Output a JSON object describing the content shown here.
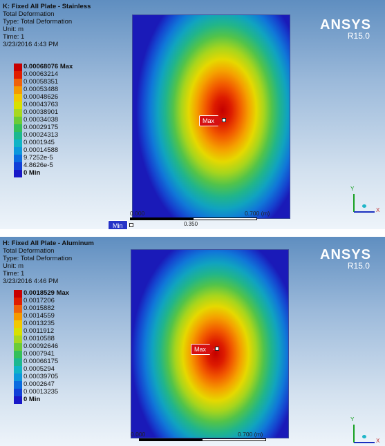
{
  "panels": [
    {
      "title": "K: Fixed All Plate - Stainless",
      "subtitle": "Total Deformation",
      "type": "Type: Total Deformation",
      "unit": "Unit: m",
      "time": "Time: 1",
      "timestamp": "3/23/2016 4:43 PM",
      "legend": [
        {
          "label": "0.00068076 Max",
          "color": "#c80000"
        },
        {
          "label": "0.00063214",
          "color": "#e01e00"
        },
        {
          "label": "0.00058351",
          "color": "#f0620a"
        },
        {
          "label": "0.00053488",
          "color": "#f59a00"
        },
        {
          "label": "0.00048626",
          "color": "#f2c800"
        },
        {
          "label": "0.00043763",
          "color": "#d8e000"
        },
        {
          "label": "0.00038901",
          "color": "#a8d820"
        },
        {
          "label": "0.00034038",
          "color": "#6ccc38"
        },
        {
          "label": "0.00029175",
          "color": "#34c05a"
        },
        {
          "label": "0.00024313",
          "color": "#1cb890"
        },
        {
          "label": "0.0001945",
          "color": "#10b4c6"
        },
        {
          "label": "0.00014588",
          "color": "#0c98dc"
        },
        {
          "label": "9.7252e-5",
          "color": "#0a6ce0"
        },
        {
          "label": "4.8626e-5",
          "color": "#1040d8"
        },
        {
          "label": "0 Min",
          "color": "#1818c8"
        }
      ],
      "probe_max": "Max",
      "probe_min": "Min",
      "scale_left": "0.000",
      "scale_right": "0.700 (m)",
      "scale_mid": "0.350",
      "logo": "ANSYS",
      "version": "R15.0",
      "axis_x": "X",
      "axis_y": "Y"
    },
    {
      "title": "H: Fixed All Plate - Aluminum",
      "subtitle": "Total Deformation",
      "type": "Type: Total Deformation",
      "unit": "Unit: m",
      "time": "Time: 1",
      "timestamp": "3/23/2016 4:46 PM",
      "legend": [
        {
          "label": "0.0018529 Max",
          "color": "#c80000"
        },
        {
          "label": "0.0017206",
          "color": "#e01e00"
        },
        {
          "label": "0.0015882",
          "color": "#f0620a"
        },
        {
          "label": "0.0014559",
          "color": "#f59a00"
        },
        {
          "label": "0.0013235",
          "color": "#f2c800"
        },
        {
          "label": "0.0011912",
          "color": "#d8e000"
        },
        {
          "label": "0.0010588",
          "color": "#a8d820"
        },
        {
          "label": "0.00092646",
          "color": "#6ccc38"
        },
        {
          "label": "0.0007941",
          "color": "#34c05a"
        },
        {
          "label": "0.00066175",
          "color": "#1cb890"
        },
        {
          "label": "0.0005294",
          "color": "#10b4c6"
        },
        {
          "label": "0.00039705",
          "color": "#0c98dc"
        },
        {
          "label": "0.0002647",
          "color": "#0a6ce0"
        },
        {
          "label": "0.00013235",
          "color": "#1040d8"
        },
        {
          "label": "0 Min",
          "color": "#1818c8"
        }
      ],
      "probe_max": "Max",
      "scale_left": "0.000",
      "scale_right": "0.700 (m)",
      "logo": "ANSYS",
      "version": "R15.0",
      "axis_x": "X",
      "axis_y": "Y"
    }
  ]
}
